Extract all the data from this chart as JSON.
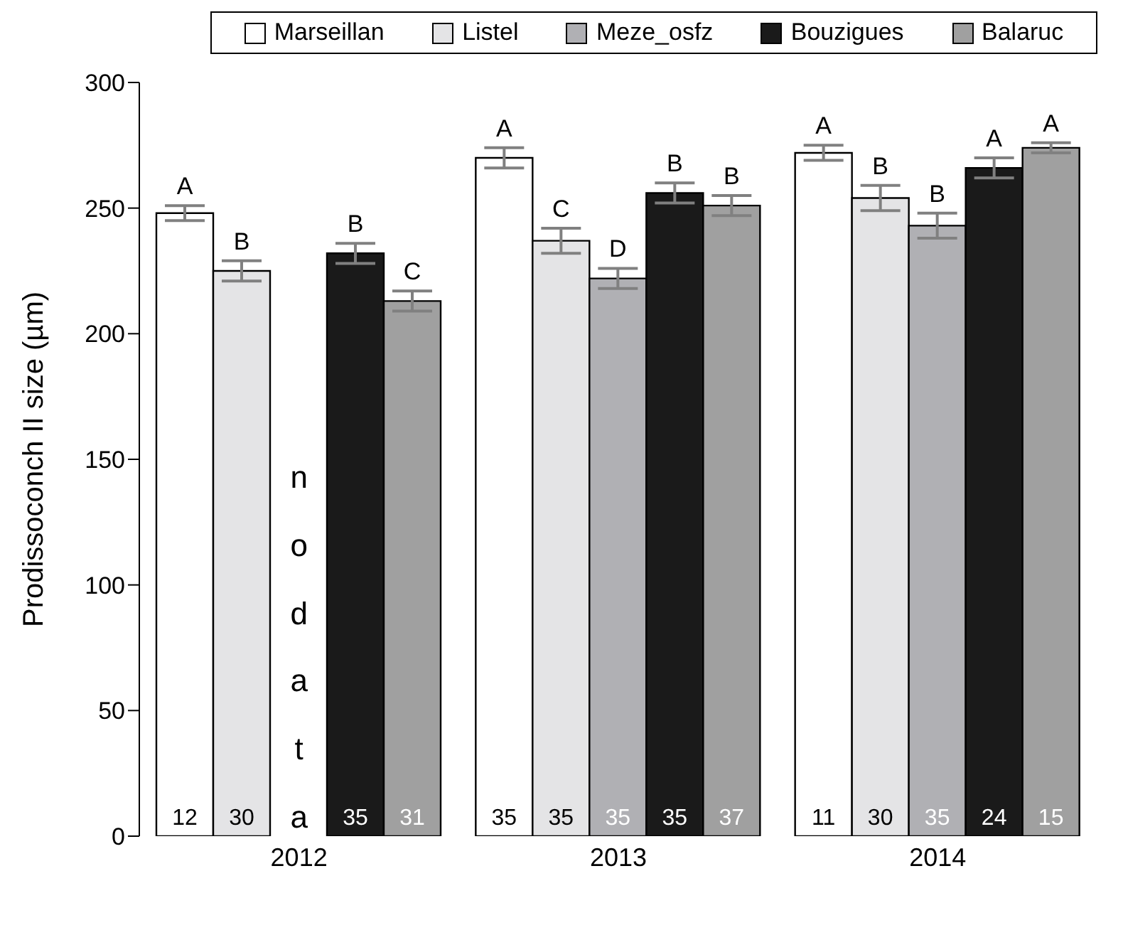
{
  "chart_data": {
    "type": "bar",
    "ylabel": "Prodissoconch II size (µm)",
    "categories": [
      "2012",
      "2013",
      "2014"
    ],
    "series": [
      {
        "name": "Marseillan",
        "color": "#ffffff",
        "values": [
          248,
          270,
          272
        ],
        "errors": [
          3,
          4,
          3
        ],
        "value_labels": [
          "A",
          "A",
          "A"
        ]
      },
      {
        "name": "Listel",
        "color": "#e4e4e6",
        "values": [
          225,
          237,
          254
        ],
        "errors": [
          4,
          5,
          5
        ],
        "value_labels": [
          "B",
          "C",
          "B"
        ]
      },
      {
        "name": "Meze_osfz",
        "color": "#b0b0b4",
        "values": [
          null,
          222,
          243
        ],
        "errors": [
          null,
          4,
          5
        ],
        "value_labels": [
          null,
          "D",
          "B"
        ]
      },
      {
        "name": "Bouzigues",
        "color": "#1a1a1a",
        "values": [
          232,
          256,
          266
        ],
        "errors": [
          4,
          4,
          4
        ],
        "value_labels": [
          "B",
          "B",
          "A"
        ]
      },
      {
        "name": "Balaruc",
        "color": "#a0a0a0",
        "values": [
          213,
          251,
          274
        ],
        "errors": [
          4,
          4,
          2
        ],
        "value_labels": [
          "C",
          "B",
          "A"
        ]
      }
    ],
    "annotations": [
      "no data",
      "12",
      "30",
      "35",
      "31",
      "35",
      "35",
      "35",
      "35",
      "37",
      "11",
      "30",
      "35",
      "24",
      "15"
    ],
    "ylim": [
      0,
      300
    ],
    "yticks": [
      0,
      50,
      100,
      150,
      200,
      250,
      300
    ],
    "grid": false,
    "legend": "top"
  }
}
